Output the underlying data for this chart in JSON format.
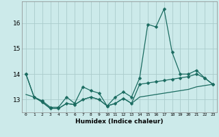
{
  "xlabel": "Humidex (Indice chaleur)",
  "background_color": "#cceaea",
  "line_color": "#1a6b60",
  "grid_color": "#aacccc",
  "x_data": [
    0,
    1,
    2,
    3,
    4,
    5,
    6,
    7,
    8,
    9,
    10,
    11,
    12,
    13,
    14,
    15,
    16,
    17,
    18,
    19,
    20,
    21,
    22,
    23
  ],
  "y_data1": [
    14.0,
    13.1,
    12.95,
    12.7,
    12.7,
    13.1,
    12.85,
    13.5,
    13.35,
    13.25,
    12.75,
    13.1,
    13.3,
    13.1,
    13.85,
    15.95,
    15.85,
    16.55,
    14.85,
    14.0,
    14.0,
    14.15,
    13.85,
    13.6
  ],
  "y_data2": [
    14.0,
    13.1,
    12.9,
    12.65,
    12.65,
    12.85,
    12.8,
    13.0,
    13.1,
    13.0,
    12.75,
    12.85,
    13.05,
    12.85,
    13.6,
    13.65,
    13.7,
    13.75,
    13.8,
    13.85,
    13.9,
    14.0,
    13.85,
    13.6
  ],
  "y_data3": [
    13.2,
    13.1,
    12.9,
    12.65,
    12.65,
    12.85,
    12.8,
    13.0,
    13.1,
    13.0,
    12.75,
    12.85,
    13.05,
    12.85,
    13.1,
    13.15,
    13.2,
    13.25,
    13.3,
    13.35,
    13.4,
    13.5,
    13.55,
    13.6
  ],
  "ylim": [
    12.5,
    16.85
  ],
  "xlim": [
    -0.5,
    23.5
  ],
  "yticks": [
    13,
    14,
    15,
    16
  ],
  "xticks": [
    0,
    1,
    2,
    3,
    4,
    5,
    6,
    7,
    8,
    9,
    10,
    11,
    12,
    13,
    14,
    15,
    16,
    17,
    18,
    19,
    20,
    21,
    22,
    23
  ]
}
